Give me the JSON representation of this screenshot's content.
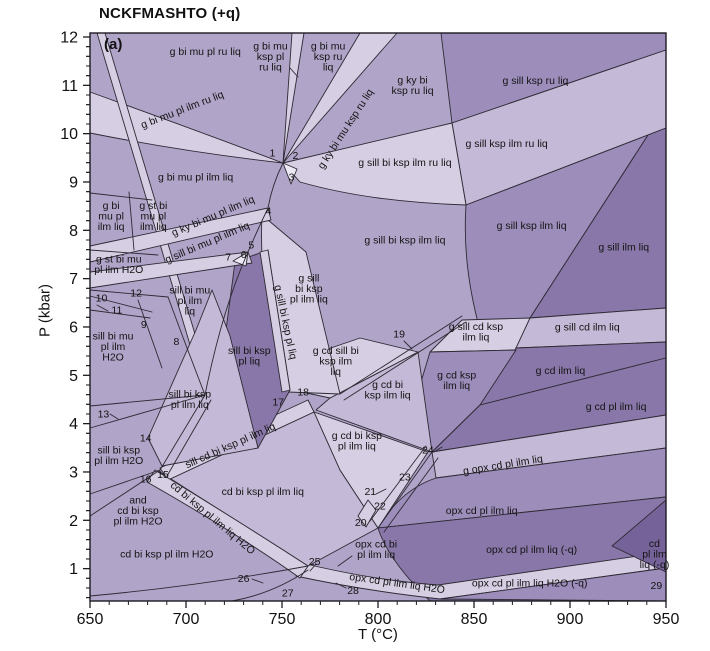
{
  "title": "NCKFMASHTO (+q)",
  "panel_label": "(a)",
  "palette": {
    "p0": "#ece9f4",
    "p1": "#d6cee3",
    "p2": "#c4b9d6",
    "p3": "#b0a4c8",
    "p4": "#9c8dba",
    "p5": "#8877a8",
    "p6": "#746299",
    "line": "#2e2a34",
    "frame": "#1d1b22",
    "text": "#141414"
  },
  "chart_data": {
    "type": "area",
    "subtype": "P-T pseudosection phase diagram",
    "title": "NCKFMASHTO (+q)",
    "panel": "(a)",
    "xlabel": "T (°C)",
    "ylabel": "P (kbar)",
    "xlim": [
      650,
      950
    ],
    "ylim": [
      0.3,
      12.1
    ],
    "x_ticks": [
      650,
      700,
      750,
      800,
      850,
      900,
      950
    ],
    "y_ticks": [
      1,
      2,
      3,
      4,
      5,
      6,
      7,
      8,
      9,
      10,
      11,
      12
    ],
    "x_minor_step": 10,
    "y_minor_step": 0.2,
    "grid": false,
    "fields": [
      {
        "lines": [
          "g bi mu pl ru liq"
        ],
        "t": 710,
        "p": 11.7
      },
      {
        "lines": [
          "g bi mu",
          "ksp pl",
          "ru liq"
        ],
        "t": 744,
        "p": 11.6
      },
      {
        "lines": [
          "g bi mu",
          "ksp ru",
          "liq"
        ],
        "t": 774,
        "p": 11.6
      },
      {
        "lines": [
          "g ky bi",
          "ksp ru liq"
        ],
        "t": 818,
        "p": 11.0
      },
      {
        "lines": [
          "g sill ksp ru liq"
        ],
        "t": 882,
        "p": 11.1
      },
      {
        "lines": [
          "g bi mu pl ilm ru liq"
        ],
        "t": 698,
        "p": 10.5,
        "rot": -21
      },
      {
        "lines": [
          "g ky bi mu ksp ru liq"
        ],
        "t": 783,
        "p": 10.1,
        "rot": -57
      },
      {
        "lines": [
          "g sill ksp ilm ru liq"
        ],
        "t": 867,
        "p": 9.8
      },
      {
        "lines": [
          "g sill bi ksp ilm ru liq"
        ],
        "t": 814,
        "p": 9.4
      },
      {
        "lines": [
          "g bi mu pl ilm liq"
        ],
        "t": 705,
        "p": 9.1
      },
      {
        "lines": [
          "g bi",
          "mu pl",
          "ilm liq"
        ],
        "t": 661,
        "p": 8.3
      },
      {
        "lines": [
          "g st bi",
          "mu pl",
          "ilm liq"
        ],
        "t": 683,
        "p": 8.3
      },
      {
        "lines": [
          "g ky bi mu pl ilm liq"
        ],
        "t": 714,
        "p": 8.3,
        "rot": -23
      },
      {
        "lines": [
          "g sill bi mu pl ilm liq"
        ],
        "t": 711,
        "p": 7.75,
        "rot": -23
      },
      {
        "lines": [
          "g st bi mu",
          "pl ilm H2O"
        ],
        "t": 665,
        "p": 7.3
      },
      {
        "lines": [
          "g sill ksp ilm liq"
        ],
        "t": 880,
        "p": 8.1
      },
      {
        "lines": [
          "g sill ilm liq"
        ],
        "t": 928,
        "p": 7.65
      },
      {
        "lines": [
          "sill bi mu",
          "pl ilm",
          "liq"
        ],
        "t": 702,
        "p": 6.55
      },
      {
        "lines": [
          "sill bi mu",
          "pl ilm",
          "H2O"
        ],
        "t": 662,
        "p": 5.6
      },
      {
        "lines": [
          "g sill bi ksp pl liq"
        ],
        "t": 752,
        "p": 6.1,
        "rot": 78
      },
      {
        "lines": [
          "g sill",
          "bi ksp",
          "pl ilm liq"
        ],
        "t": 764,
        "p": 6.8
      },
      {
        "lines": [
          "g sill bi ksp ilm liq"
        ],
        "t": 814,
        "p": 7.8
      },
      {
        "lines": [
          "sill bi ksp",
          "pl liq"
        ],
        "t": 733,
        "p": 5.4
      },
      {
        "lines": [
          "sill bi ksp",
          "pl ilm liq"
        ],
        "t": 702,
        "p": 4.5
      },
      {
        "lines": [
          "g sill cd ksp",
          "ilm liq"
        ],
        "t": 851,
        "p": 5.9
      },
      {
        "lines": [
          "g sill cd ilm liq"
        ],
        "t": 909,
        "p": 6.0
      },
      {
        "lines": [
          "g cd ksp",
          "ilm liq"
        ],
        "t": 841,
        "p": 4.9
      },
      {
        "lines": [
          "g cd ilm liq"
        ],
        "t": 895,
        "p": 5.1
      },
      {
        "lines": [
          "g cd pl ilm liq"
        ],
        "t": 924,
        "p": 4.35
      },
      {
        "lines": [
          "g cd sill bi",
          "ksp ilm",
          "liq"
        ],
        "t": 778,
        "p": 5.3
      },
      {
        "lines": [
          "g cd bi",
          "ksp ilm liq"
        ],
        "t": 805,
        "p": 4.7
      },
      {
        "lines": [
          "g cd bi ksp",
          "pl ilm liq"
        ],
        "t": 789,
        "p": 3.65
      },
      {
        "lines": [
          "sill cd bi ksp pl ilm liq"
        ],
        "t": 723,
        "p": 3.55,
        "rot": -24
      },
      {
        "lines": [
          "sill bi ksp",
          "pl ilm H2O"
        ],
        "t": 665,
        "p": 3.35
      },
      {
        "lines": [
          "and",
          "cd bi ksp",
          "pl ilm H2O"
        ],
        "t": 675,
        "p": 2.2
      },
      {
        "lines": [
          "cd bi ksp pl ilm liq"
        ],
        "t": 740,
        "p": 2.6
      },
      {
        "lines": [
          "cd bi ksp pl ilm liq H2O"
        ],
        "t": 714,
        "p": 2.05,
        "rot": 40
      },
      {
        "lines": [
          "cd bi ksp pl ilm H2O"
        ],
        "t": 690,
        "p": 1.3
      },
      {
        "lines": [
          "g opx cd pl ilm liq"
        ],
        "t": 865,
        "p": 3.15,
        "rot": -9
      },
      {
        "lines": [
          "opx cd pl ilm liq"
        ],
        "t": 854,
        "p": 2.2
      },
      {
        "lines": [
          "opx cd bi",
          "pl ilm liq"
        ],
        "t": 799,
        "p": 1.4
      },
      {
        "lines": [
          "opx cd pl ilm liq H2O"
        ],
        "t": 810,
        "p": 0.7,
        "rot": 8
      },
      {
        "lines": [
          "opx cd pl ilm liq (-q)"
        ],
        "t": 880,
        "p": 1.4
      },
      {
        "lines": [
          "opx cd pl ilm liq H2O (-q)"
        ],
        "t": 879,
        "p": 0.7
      },
      {
        "lines": [
          "cd",
          "pl ilm",
          "liq (-q)"
        ],
        "t": 944,
        "p": 1.3
      }
    ],
    "numbered_fields": [
      {
        "n": "1",
        "t": 745,
        "p": 9.6
      },
      {
        "n": "2",
        "t": 757,
        "p": 9.55
      },
      {
        "n": "3",
        "t": 755,
        "p": 9.1
      },
      {
        "n": "4",
        "t": 743,
        "p": 8.4
      },
      {
        "n": "5",
        "t": 734,
        "p": 7.7
      },
      {
        "n": "6",
        "t": 730,
        "p": 7.5
      },
      {
        "n": "7",
        "t": 722,
        "p": 7.45
      },
      {
        "n": "8",
        "t": 695,
        "p": 5.7
      },
      {
        "n": "9",
        "t": 678,
        "p": 6.05
      },
      {
        "n": "10",
        "t": 656,
        "p": 6.6
      },
      {
        "n": "11",
        "t": 664,
        "p": 6.35
      },
      {
        "n": "12",
        "t": 674,
        "p": 6.7
      },
      {
        "n": "13",
        "t": 657,
        "p": 4.2
      },
      {
        "n": "14",
        "t": 679,
        "p": 3.7
      },
      {
        "n": "15",
        "t": 688,
        "p": 2.95
      },
      {
        "n": "16",
        "t": 679,
        "p": 2.85
      },
      {
        "n": "17",
        "t": 748,
        "p": 4.45
      },
      {
        "n": "18",
        "t": 761,
        "p": 4.65
      },
      {
        "n": "19",
        "t": 811,
        "p": 5.85
      },
      {
        "n": "20",
        "t": 791,
        "p": 1.95
      },
      {
        "n": "21",
        "t": 796,
        "p": 2.6
      },
      {
        "n": "22",
        "t": 801,
        "p": 2.3
      },
      {
        "n": "23",
        "t": 814,
        "p": 2.9
      },
      {
        "n": "24",
        "t": 826,
        "p": 3.45
      },
      {
        "n": "25",
        "t": 767,
        "p": 1.15
      },
      {
        "n": "26",
        "t": 730,
        "p": 0.8
      },
      {
        "n": "27",
        "t": 753,
        "p": 0.5
      },
      {
        "n": "28",
        "t": 787,
        "p": 0.55
      },
      {
        "n": "29",
        "t": 945,
        "p": 0.65
      }
    ]
  }
}
